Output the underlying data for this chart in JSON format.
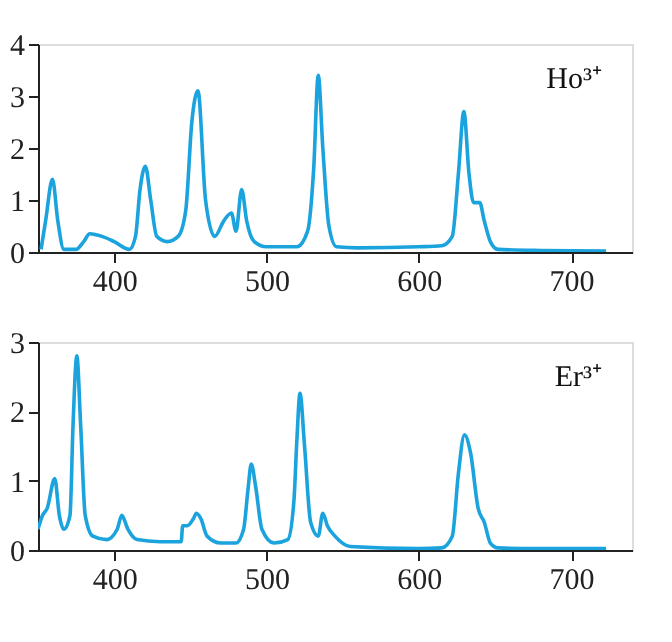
{
  "chart_data": [
    {
      "type": "line",
      "annotations": [
        "Ho³⁺"
      ],
      "xlim": [
        350,
        740
      ],
      "xticks": [
        400,
        500,
        600,
        700
      ],
      "ylim": [
        0,
        4
      ],
      "yticks": [
        0,
        1,
        2,
        3,
        4
      ],
      "grid": false,
      "series": [
        {
          "color": "#1ba3dd",
          "x": [
            352,
            355,
            359.5,
            363,
            367,
            375,
            380,
            384,
            392,
            400,
            410,
            414,
            417,
            420.5,
            424,
            428,
            435,
            442,
            447,
            451,
            455,
            460,
            466,
            472,
            477,
            480,
            483.7,
            487,
            492,
            500,
            520,
            527,
            531,
            534,
            537,
            541,
            546,
            560,
            600,
            615,
            622,
            626,
            629.6,
            633,
            636,
            640,
            643,
            647,
            652,
            680,
            723
          ],
          "values": [
            0.05,
            0.6,
            1.4,
            0.6,
            0.05,
            0.05,
            0.2,
            0.35,
            0.3,
            0.2,
            0.05,
            0.3,
            1.2,
            1.65,
            1.0,
            0.3,
            0.2,
            0.3,
            0.8,
            2.5,
            3.1,
            1.0,
            0.3,
            0.6,
            0.75,
            0.4,
            1.2,
            0.6,
            0.2,
            0.1,
            0.1,
            0.4,
            1.6,
            3.4,
            2.0,
            0.5,
            0.1,
            0.08,
            0.1,
            0.12,
            0.3,
            1.5,
            2.7,
            1.5,
            0.95,
            0.95,
            0.6,
            0.2,
            0.05,
            0.03,
            0.02
          ]
        }
      ]
    },
    {
      "type": "line",
      "annotations": [
        "Er³⁺"
      ],
      "xlim": [
        350,
        740
      ],
      "xticks": [
        400,
        500,
        600,
        700
      ],
      "ylim": [
        0,
        3
      ],
      "yticks": [
        0,
        1,
        2,
        3
      ],
      "grid": false,
      "series": [
        {
          "color": "#1ba3dd",
          "x": [
            350,
            353,
            356,
            361,
            364,
            367,
            371,
            373,
            375.5,
            378,
            381,
            386,
            395,
            402,
            405,
            409,
            415,
            430,
            444,
            445,
            448,
            452,
            454,
            457,
            461,
            470,
            480,
            485,
            488,
            490,
            493,
            497,
            505,
            514,
            518,
            520,
            522,
            525,
            529,
            534,
            537,
            540,
            545,
            555,
            600,
            615,
            622,
            626,
            630,
            634,
            639,
            643,
            647,
            652,
            680,
            723
          ],
          "values": [
            0.3,
            0.5,
            0.6,
            1.03,
            0.5,
            0.3,
            0.5,
            1.8,
            2.8,
            1.8,
            0.5,
            0.2,
            0.15,
            0.3,
            0.5,
            0.3,
            0.15,
            0.12,
            0.12,
            0.35,
            0.35,
            0.45,
            0.53,
            0.45,
            0.2,
            0.1,
            0.1,
            0.3,
            0.9,
            1.24,
            0.9,
            0.3,
            0.1,
            0.15,
            0.7,
            1.6,
            2.26,
            1.5,
            0.4,
            0.2,
            0.53,
            0.35,
            0.2,
            0.05,
            0.02,
            0.03,
            0.2,
            1.1,
            1.66,
            1.4,
            0.6,
            0.4,
            0.1,
            0.03,
            0.02,
            0.02
          ]
        }
      ]
    }
  ]
}
